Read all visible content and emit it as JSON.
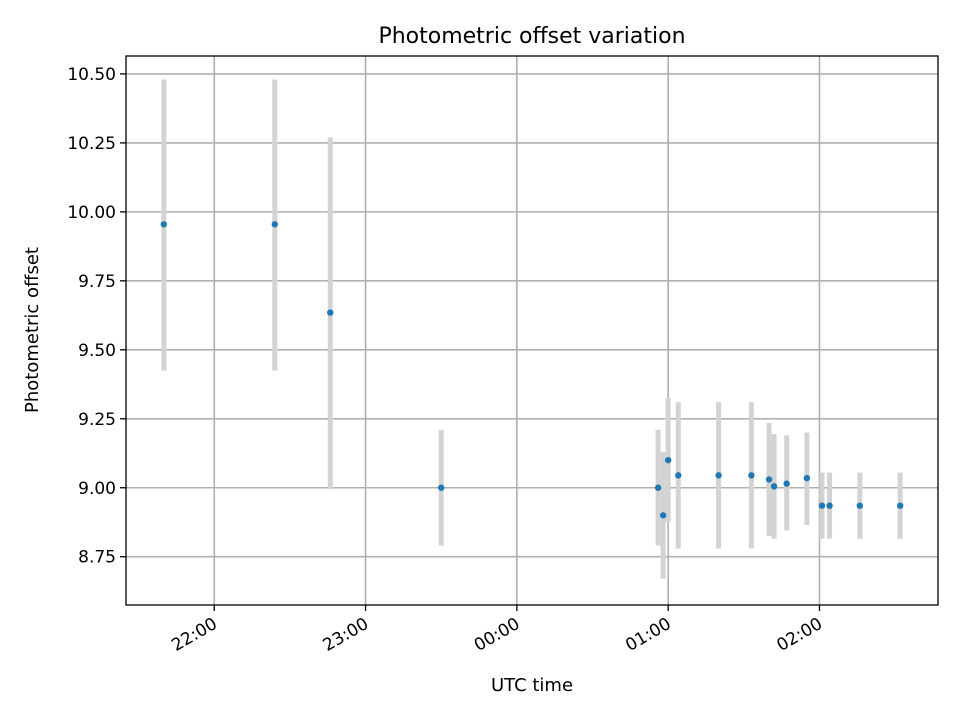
{
  "chart_data": {
    "type": "scatter",
    "title": "Photometric offset variation",
    "xlabel": "UTC time",
    "ylabel": "Photometric offset",
    "x_axis": {
      "kind": "time",
      "range": [
        "21:25",
        "02:47"
      ],
      "ticks": [
        "22:00",
        "23:00",
        "00:00",
        "01:00",
        "02:00"
      ],
      "tick_rotation_deg": 30
    },
    "y_axis": {
      "range": [
        8.575,
        10.565
      ],
      "ticks": [
        "8.75",
        "9.00",
        "9.25",
        "9.50",
        "9.75",
        "10.00",
        "10.25",
        "10.50"
      ]
    },
    "grid": true,
    "colors": {
      "point": "#1f77b4",
      "errorbar": "#d3d3d3",
      "grid": "#b0b0b0"
    },
    "points": [
      {
        "x": "21:40",
        "y": 9.955,
        "ylow": 9.425,
        "yhigh": 10.48
      },
      {
        "x": "22:24",
        "y": 9.955,
        "ylow": 9.425,
        "yhigh": 10.48
      },
      {
        "x": "22:46",
        "y": 9.635,
        "ylow": 8.995,
        "yhigh": 10.27
      },
      {
        "x": "23:30",
        "y": 9.0,
        "ylow": 8.79,
        "yhigh": 9.21
      },
      {
        "x": "00:56",
        "y": 9.0,
        "ylow": 8.79,
        "yhigh": 9.21
      },
      {
        "x": "00:58",
        "y": 8.9,
        "ylow": 8.67,
        "yhigh": 9.13
      },
      {
        "x": "01:00",
        "y": 9.1,
        "ylow": 8.875,
        "yhigh": 9.325
      },
      {
        "x": "01:04",
        "y": 9.045,
        "ylow": 8.78,
        "yhigh": 9.31
      },
      {
        "x": "01:20",
        "y": 9.045,
        "ylow": 8.78,
        "yhigh": 9.31
      },
      {
        "x": "01:33",
        "y": 9.045,
        "ylow": 8.78,
        "yhigh": 9.31
      },
      {
        "x": "01:40",
        "y": 9.03,
        "ylow": 8.825,
        "yhigh": 9.235
      },
      {
        "x": "01:42",
        "y": 9.005,
        "ylow": 8.815,
        "yhigh": 9.195
      },
      {
        "x": "01:47",
        "y": 9.015,
        "ylow": 8.845,
        "yhigh": 9.19
      },
      {
        "x": "01:55",
        "y": 9.035,
        "ylow": 8.865,
        "yhigh": 9.2
      },
      {
        "x": "02:01",
        "y": 8.935,
        "ylow": 8.815,
        "yhigh": 9.055
      },
      {
        "x": "02:04",
        "y": 8.935,
        "ylow": 8.815,
        "yhigh": 9.055
      },
      {
        "x": "02:16",
        "y": 8.935,
        "ylow": 8.815,
        "yhigh": 9.055
      },
      {
        "x": "02:32",
        "y": 8.935,
        "ylow": 8.815,
        "yhigh": 9.055
      }
    ]
  }
}
